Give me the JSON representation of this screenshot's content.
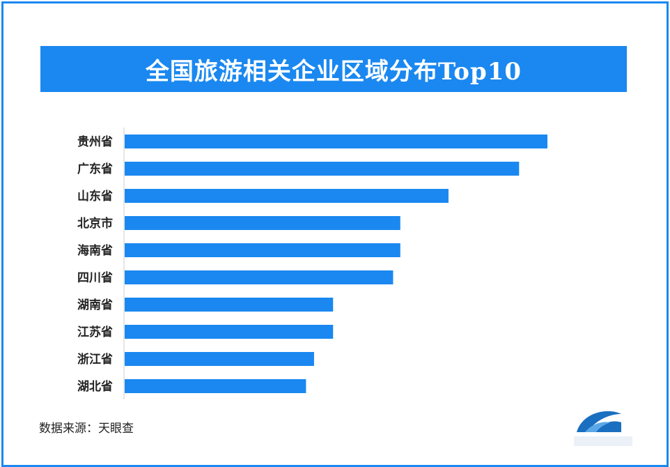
{
  "chart_data": {
    "type": "bar",
    "orientation": "horizontal",
    "title": "全国旅游相关企业区域分布Top10",
    "xlabel": "",
    "ylabel": "",
    "categories": [
      "贵州省",
      "广东省",
      "山东省",
      "北京市",
      "海南省",
      "四川省",
      "湖南省",
      "江苏省",
      "浙江省",
      "湖北省"
    ],
    "values": [
      100,
      93.3,
      76.6,
      65.2,
      65.2,
      63.5,
      49.3,
      49.3,
      44.8,
      42.9
    ],
    "xlim": [
      0,
      100
    ],
    "grid": false,
    "bar_color": "#1a88f0"
  },
  "source_text": "数据来源：天眼查",
  "colors": {
    "accent": "#1a88f0",
    "axis": "#cccccc",
    "text": "#222222"
  }
}
